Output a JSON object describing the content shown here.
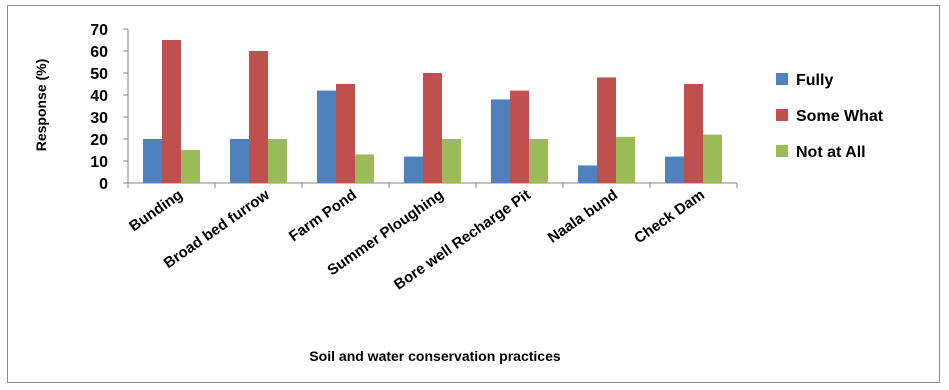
{
  "chart_data": {
    "type": "bar",
    "categories": [
      "Bunding",
      "Broad bed furrow",
      "Farm Pond",
      "Summer Ploughing",
      "Bore well Recharge Pit",
      "Naala bund",
      "Check Dam"
    ],
    "series": [
      {
        "name": "Fully",
        "color": "#4F81BD",
        "values": [
          20,
          20,
          42,
          12,
          38,
          8,
          12
        ]
      },
      {
        "name": "Some What",
        "color": "#C0504D",
        "values": [
          65,
          60,
          45,
          50,
          42,
          48,
          45
        ]
      },
      {
        "name": "Not at All",
        "color": "#9BBB59",
        "values": [
          15,
          20,
          13,
          20,
          20,
          21,
          22
        ]
      }
    ],
    "title": "",
    "xlabel": "Soil and water conservation practices",
    "ylabel": "Response (%)",
    "ylim": [
      0,
      70
    ],
    "yticks": [
      "0",
      "10",
      "20",
      "30",
      "40",
      "50",
      "60",
      "70"
    ],
    "grid": false,
    "legend_position": "right"
  }
}
